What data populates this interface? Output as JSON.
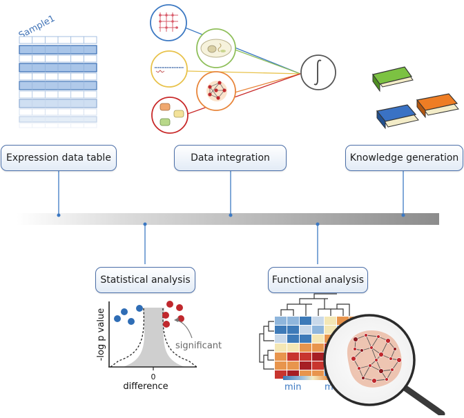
{
  "sample_label": "Sample1",
  "stage_boxes": {
    "expression": "Expression data table",
    "integration": "Data integration",
    "knowledge": "Knowledge generation",
    "statistical": "Statistical analysis",
    "functional": "Functional analysis"
  },
  "volcano": {
    "ylabel": "-log p value",
    "xlabel": "difference",
    "zero_tick": "0",
    "annotation": "significant"
  },
  "heatmap_legend": {
    "min": "min",
    "max": "max"
  },
  "colors": {
    "box_border": "#4a6ea8",
    "timeline": "#9a9a9a",
    "blue_point": "#2f6db5",
    "red_point": "#c0282d",
    "integral_line": "#555555"
  }
}
